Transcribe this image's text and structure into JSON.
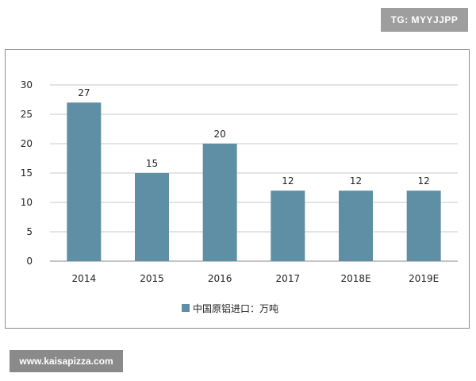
{
  "badge": {
    "text": "TG: MYYJJPP"
  },
  "watermark": {
    "text": "www.kaisapizza.com"
  },
  "colors": {
    "bar": "#5f8fa4",
    "grid": "#c8c8c8",
    "axis": "#888888"
  },
  "chart_data": {
    "type": "bar",
    "categories": [
      "2014",
      "2015",
      "2016",
      "2017",
      "2018E",
      "2019E"
    ],
    "series": [
      {
        "name": "中国原铝进口：万吨",
        "values": [
          27,
          15,
          20,
          12,
          12,
          12
        ]
      }
    ],
    "ylim": [
      0,
      30
    ],
    "yticks": [
      0,
      5,
      10,
      15,
      20,
      25,
      30
    ],
    "grid": true,
    "legend": "bottom-center",
    "title": "",
    "xlabel": "",
    "ylabel": ""
  }
}
